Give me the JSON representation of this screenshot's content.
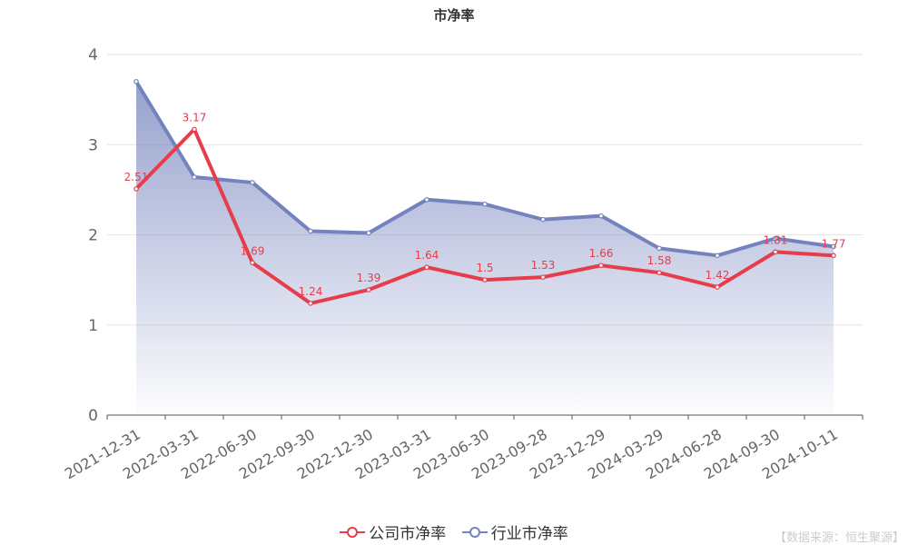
{
  "chart_data": {
    "type": "line",
    "title": "市净率",
    "categories": [
      "2021-12-31",
      "2022-03-31",
      "2022-06-30",
      "2022-09-30",
      "2022-12-30",
      "2023-03-31",
      "2023-06-30",
      "2023-09-28",
      "2023-12-29",
      "2024-03-29",
      "2024-06-28",
      "2024-09-30",
      "2024-10-11"
    ],
    "series": [
      {
        "name": "公司市净率",
        "color": "#e63c4c",
        "values": [
          2.51,
          3.17,
          1.69,
          1.24,
          1.39,
          1.64,
          1.5,
          1.53,
          1.66,
          1.58,
          1.42,
          1.81,
          1.77
        ],
        "labels": [
          "2.51",
          "3.17",
          "1.69",
          "1.24",
          "1.39",
          "1.64",
          "1.5",
          "1.53",
          "1.66",
          "1.58",
          "1.42",
          "1.81",
          "1.77"
        ],
        "show_labels": true
      },
      {
        "name": "行业市净率",
        "color": "#7482bd",
        "values": [
          3.7,
          2.64,
          2.58,
          2.04,
          2.02,
          2.39,
          2.34,
          2.17,
          2.21,
          1.85,
          1.77,
          1.96,
          1.87
        ],
        "area": true,
        "show_labels": false
      }
    ],
    "ylim": [
      0,
      4
    ],
    "yticks": [
      "0",
      "1",
      "2",
      "3",
      "4"
    ],
    "grid": true,
    "legend_position": "bottom-center"
  },
  "source_note": "【数据来源：恒生聚源】"
}
